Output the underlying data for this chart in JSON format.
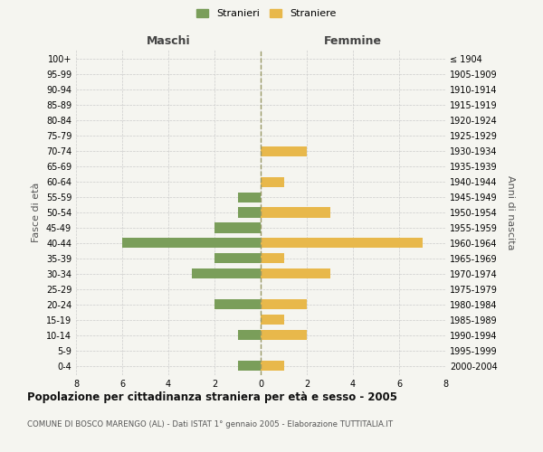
{
  "age_groups": [
    "0-4",
    "5-9",
    "10-14",
    "15-19",
    "20-24",
    "25-29",
    "30-34",
    "35-39",
    "40-44",
    "45-49",
    "50-54",
    "55-59",
    "60-64",
    "65-69",
    "70-74",
    "75-79",
    "80-84",
    "85-89",
    "90-94",
    "95-99",
    "100+"
  ],
  "birth_years": [
    "2000-2004",
    "1995-1999",
    "1990-1994",
    "1985-1989",
    "1980-1984",
    "1975-1979",
    "1970-1974",
    "1965-1969",
    "1960-1964",
    "1955-1959",
    "1950-1954",
    "1945-1949",
    "1940-1944",
    "1935-1939",
    "1930-1934",
    "1925-1929",
    "1920-1924",
    "1915-1919",
    "1910-1914",
    "1905-1909",
    "≤ 1904"
  ],
  "maschi": [
    1,
    0,
    1,
    0,
    2,
    0,
    3,
    2,
    6,
    2,
    1,
    1,
    0,
    0,
    0,
    0,
    0,
    0,
    0,
    0,
    0
  ],
  "femmine": [
    1,
    0,
    2,
    1,
    2,
    0,
    3,
    1,
    7,
    0,
    3,
    0,
    1,
    0,
    2,
    0,
    0,
    0,
    0,
    0,
    0
  ],
  "color_maschi": "#7a9e5a",
  "color_femmine": "#e8b84b",
  "background_color": "#f5f5f0",
  "grid_color": "#cccccc",
  "center_line_color": "#999966",
  "title": "Popolazione per cittadinanza straniera per età e sesso - 2005",
  "subtitle": "COMUNE DI BOSCO MARENGO (AL) - Dati ISTAT 1° gennaio 2005 - Elaborazione TUTTITALIA.IT",
  "label_maschi": "Maschi",
  "label_femmine": "Femmine",
  "legend_stranieri": "Stranieri",
  "legend_straniere": "Straniere",
  "ylabel_left": "Fasce di età",
  "ylabel_right": "Anni di nascita",
  "xlim": 8
}
